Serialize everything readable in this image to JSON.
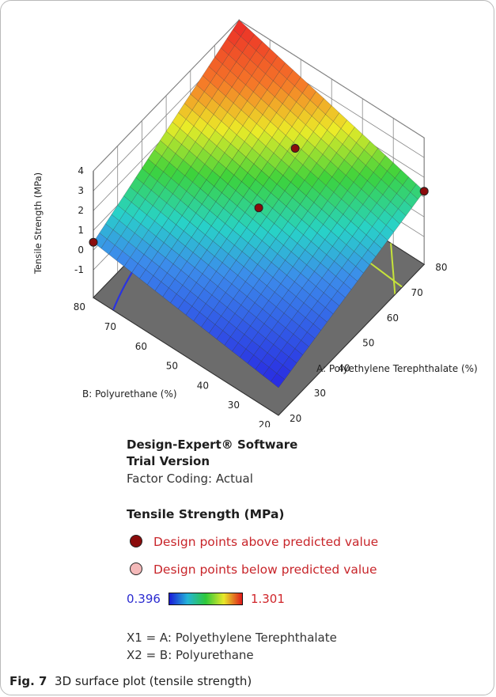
{
  "figure": {
    "caption_label": "Fig. 7",
    "caption_text": "3D surface plot (tensile strength)"
  },
  "software": {
    "line1": "Design-Expert® Software",
    "line2": "Trial Version",
    "line3": "Factor Coding: Actual"
  },
  "legend": {
    "title": "Tensile Strength (MPa)",
    "above_label": "Design points above predicted value",
    "below_label": "Design points below predicted value",
    "above_color": "#8b0c0c",
    "below_color": "#f4b9b9",
    "gradient_min": "0.396",
    "gradient_max": "1.301"
  },
  "factors": {
    "x1": "X1 = A: Polyethylene Terephthalate",
    "x2": "X2 = B: Polyurethane"
  },
  "chart_data": {
    "type": "surface3d",
    "zlabel": "Tensile Strength (MPa)",
    "xlabel": "A: Polyethylene Terephthalate (%)",
    "ylabel": "B: Polyurethane (%)",
    "z_ticks": [
      "4",
      "3",
      "2",
      "1",
      "0",
      "-1"
    ],
    "x_ticks": [
      "20",
      "30",
      "40",
      "50",
      "60",
      "70",
      "80"
    ],
    "y_ticks": [
      "20",
      "30",
      "40",
      "50",
      "60",
      "70",
      "80"
    ],
    "xlim": [
      20,
      80
    ],
    "ylim": [
      20,
      80
    ],
    "zlim": [
      -1,
      4
    ],
    "corners": [
      {
        "A": 20,
        "B": 80,
        "z": 0.4
      },
      {
        "A": 80,
        "B": 80,
        "z": 4.0
      },
      {
        "A": 80,
        "B": 20,
        "z": 1.3
      },
      {
        "A": 20,
        "B": 20,
        "z": -1.0
      }
    ],
    "design_points": [
      {
        "A": 20,
        "B": 80,
        "z": 0.4
      },
      {
        "A": 80,
        "B": 20,
        "z": 1.3
      },
      {
        "A": 50,
        "B": 50,
        "z": 1.3
      },
      {
        "A": 65,
        "B": 50,
        "z": 2.4
      }
    ],
    "grid": true
  }
}
